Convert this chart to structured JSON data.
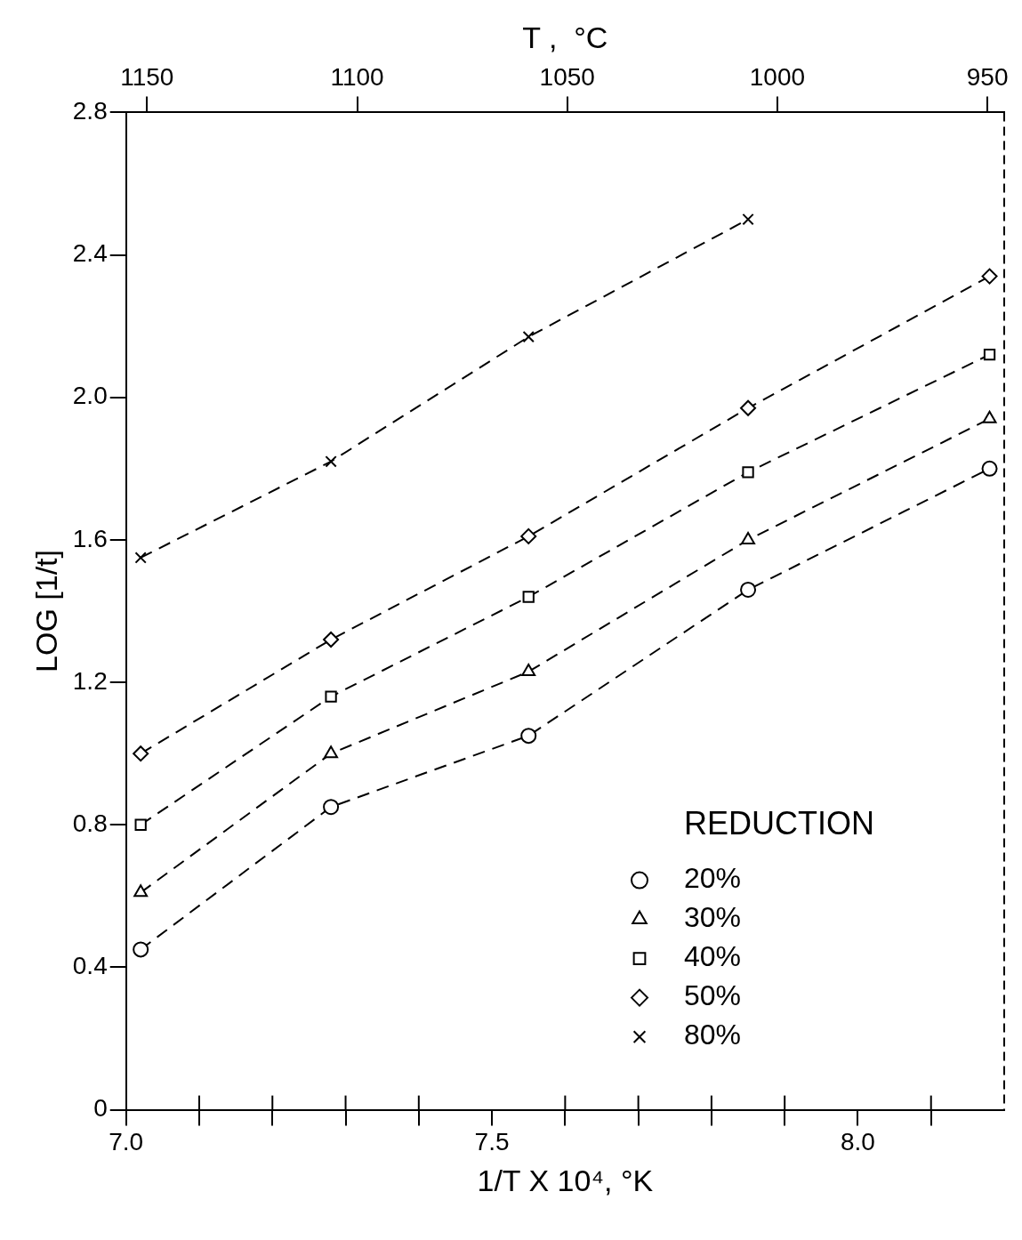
{
  "chart_data": {
    "type": "line",
    "x": [
      7.02,
      7.28,
      7.55,
      7.85,
      8.18
    ],
    "series": [
      {
        "name": "20%",
        "color": "#000000",
        "marker": "circle",
        "values": [
          0.45,
          0.85,
          1.05,
          1.46,
          1.8
        ]
      },
      {
        "name": "30%",
        "color": "#000000",
        "marker": "triangle",
        "values": [
          0.61,
          1.0,
          1.23,
          1.6,
          1.94
        ]
      },
      {
        "name": "40%",
        "color": "#000000",
        "marker": "square",
        "values": [
          0.8,
          1.16,
          1.44,
          1.79,
          2.12
        ]
      },
      {
        "name": "50%",
        "color": "#000000",
        "marker": "diamond",
        "values": [
          1.0,
          1.32,
          1.61,
          1.97,
          2.34
        ]
      },
      {
        "name": "80%",
        "color": "#000000",
        "marker": "cross",
        "values": [
          1.55,
          1.82,
          2.17,
          2.5,
          null
        ]
      }
    ],
    "xlabel": "1/T X 10⁴, °K",
    "ylabel": "LOG [1/t]",
    "x2label": "T ,  °C",
    "legend_title": "REDUCTION",
    "legend": "bottom right",
    "line_style": "dashed",
    "grid": false,
    "xlim": [
      7.0,
      8.2
    ],
    "xticks": [
      {
        "value": 7.0,
        "label": "7.0"
      },
      {
        "value": 7.1,
        "label": null
      },
      {
        "value": 7.2,
        "label": null
      },
      {
        "value": 7.3,
        "label": null
      },
      {
        "value": 7.4,
        "label": null
      },
      7.5,
      {
        "value": 7.6,
        "label": null
      },
      {
        "value": 7.7,
        "label": null
      },
      {
        "value": 7.8,
        "label": null
      },
      {
        "value": 7.9,
        "label": null
      },
      {
        "value": 8.0,
        "label": "8.0"
      },
      {
        "value": 8.1,
        "label": null
      }
    ],
    "x2lim": [
      1155,
      946
    ],
    "x2ticks": [
      1150,
      1100,
      1050,
      1000,
      950
    ],
    "ylim": [
      0,
      2.8
    ],
    "yticks": [
      0,
      0.4,
      0.8,
      1.2,
      1.6,
      {
        "value": 2.0,
        "label": "2.0"
      },
      2.4,
      2.8
    ]
  }
}
